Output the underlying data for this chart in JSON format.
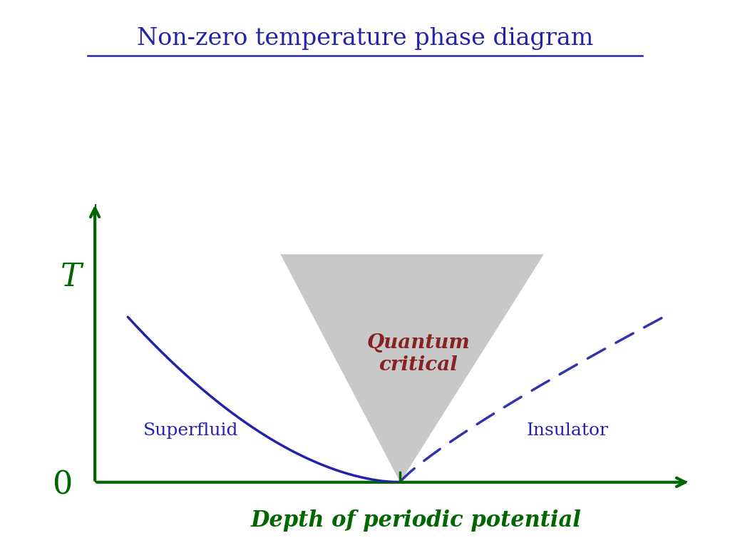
{
  "title": "Non-zero temperature phase diagram",
  "title_color": "#2222aa",
  "title_fontsize": 24,
  "xlabel": "Depth of periodic potential",
  "xlabel_color": "#006600",
  "xlabel_fontsize": 22,
  "ylabel": "T",
  "ylabel_color": "#006600",
  "ylabel_fontsize": 32,
  "zero_label": "0",
  "zero_color": "#006600",
  "zero_fontsize": 32,
  "axis_color": "#006600",
  "axis_linewidth": 3,
  "superfluid_label": "Superfluid",
  "superfluid_color": "#2222aa",
  "superfluid_fontsize": 18,
  "insulator_label": "Insulator",
  "insulator_color": "#2222aa",
  "insulator_fontsize": 18,
  "qc_label": "Quantum\ncritical",
  "qc_color": "#882222",
  "qc_fontsize": 20,
  "triangle_color": "#c8c8c8",
  "triangle_alpha": 1.0,
  "curve_color": "#2222aa",
  "curve_linewidth": 2.5,
  "dashed_color": "#3333aa",
  "dashed_linewidth": 2.5,
  "background_color": "#ffffff",
  "xlim": [
    0,
    10
  ],
  "ylim": [
    0,
    10
  ],
  "critical_x": 5.1,
  "triangle_top_left_x": 3.1,
  "triangle_top_right_x": 7.5,
  "triangle_top_y": 8.0,
  "curve_start_x": 0.55,
  "curve_start_y": 5.8,
  "dashed_end_x": 9.5,
  "dashed_end_y": 5.8
}
